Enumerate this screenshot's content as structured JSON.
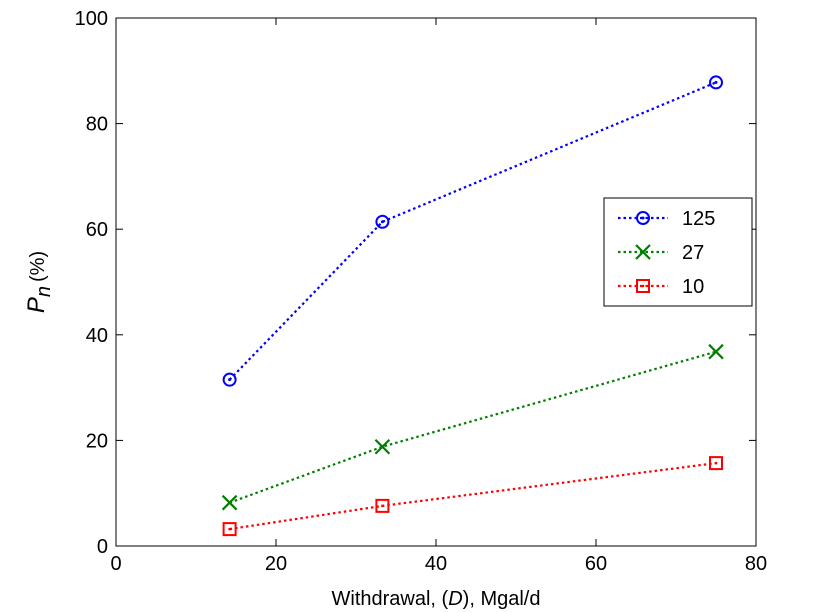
{
  "chart_data": {
    "type": "line",
    "title": "",
    "xlabel": "Withdrawal, (D), Mgal/d",
    "xlabel_parts": [
      "Withdrawal, (",
      "D",
      "), Mgal/d"
    ],
    "ylabel": "P_n (%)",
    "ylabel_parts": {
      "symbol": "P",
      "subscript": "n",
      "unit": "(%)"
    },
    "xlim": [
      0,
      80
    ],
    "ylim": [
      0,
      100
    ],
    "xticks": [
      0,
      20,
      40,
      60,
      80
    ],
    "yticks": [
      0,
      20,
      40,
      60,
      80,
      100
    ],
    "grid": false,
    "legend_position": "right",
    "x": [
      14.2,
      33.3,
      75
    ],
    "series": [
      {
        "name": "125",
        "values": [
          31.5,
          61.4,
          87.8
        ],
        "color": "#0000ff",
        "marker": "circle"
      },
      {
        "name": "27",
        "values": [
          8.2,
          18.8,
          36.8
        ],
        "color": "#008000",
        "marker": "x"
      },
      {
        "name": "10",
        "values": [
          3.2,
          7.6,
          15.7
        ],
        "color": "#ff0000",
        "marker": "square"
      }
    ]
  }
}
